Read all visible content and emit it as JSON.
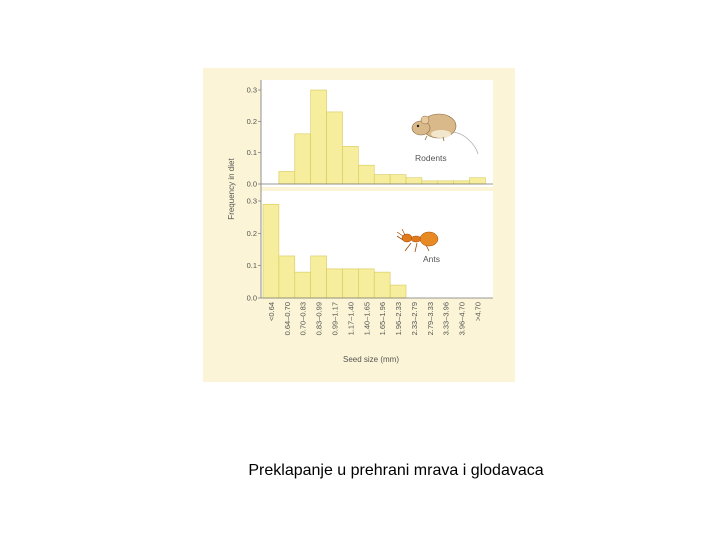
{
  "caption": "Preklapanje u prehrani mrava i glodavaca",
  "colors": {
    "figure_background": "#fbf4d6",
    "plot_background": "#ffffff",
    "bar_fill": "#f6ee9c",
    "bar_stroke": "#d8c85a",
    "axis": "#777777",
    "text": "#555555"
  },
  "chart_data": {
    "type": "bar",
    "ylabel": "Frequency in diet",
    "xlabel": "Seed size (mm)",
    "ylim": [
      0,
      0.3
    ],
    "y_ticks": [
      "0.0",
      "0.1",
      "0.2",
      "0.3"
    ],
    "grid": false,
    "categories": [
      "<0.64",
      "0.64–0.70",
      "0.70–0.83",
      "0.83–0.99",
      "0.99–1.17",
      "1.17–1.40",
      "1.40–1.65",
      "1.65–1.96",
      "1.96–2.33",
      "2.33–2.79",
      "2.79–3.33",
      "3.33–3.96",
      "3.96–4.70",
      ">4.70"
    ],
    "series": [
      {
        "name": "Rodents",
        "icon": "rodent-icon",
        "values": [
          0.0,
          0.04,
          0.16,
          0.3,
          0.23,
          0.12,
          0.06,
          0.03,
          0.03,
          0.02,
          0.01,
          0.01,
          0.01,
          0.02
        ]
      },
      {
        "name": "Ants",
        "icon": "ant-icon",
        "values": [
          0.29,
          0.13,
          0.08,
          0.13,
          0.09,
          0.09,
          0.09,
          0.08,
          0.04,
          0.0,
          0.0,
          0.0,
          0.0,
          0.0
        ]
      }
    ]
  }
}
